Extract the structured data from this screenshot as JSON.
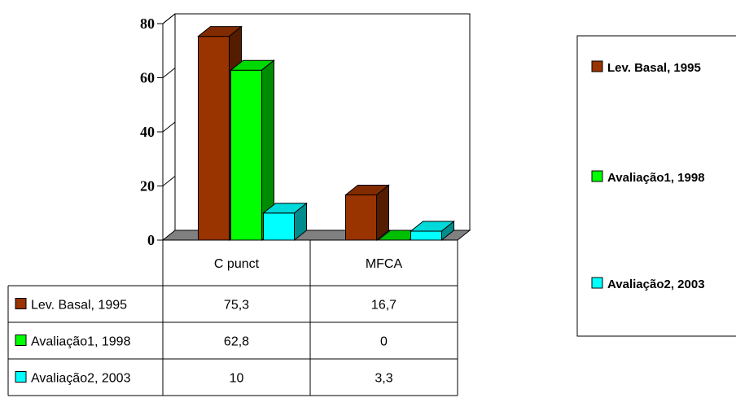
{
  "chart_data": {
    "type": "bar",
    "categories": [
      "C punct",
      "MFCA"
    ],
    "series": [
      {
        "name": "Lev. Basal, 1995",
        "values": [
          75.3,
          16.7
        ],
        "value_labels": [
          "75,3",
          "16,7"
        ],
        "color": "#993300"
      },
      {
        "name": "Avaliação1, 1998",
        "values": [
          62.8,
          0
        ],
        "value_labels": [
          "62,8",
          "0"
        ],
        "color": "#00ff00"
      },
      {
        "name": "Avaliação2, 2003",
        "values": [
          10,
          3.3
        ],
        "value_labels": [
          "10",
          "3,3"
        ],
        "color": "#00ffff"
      }
    ],
    "yticks": [
      "0",
      "20",
      "40",
      "60",
      "80"
    ],
    "ylim": [
      0,
      80
    ],
    "grid": true,
    "three_d": true,
    "data_table": true,
    "legend_position": "right"
  }
}
